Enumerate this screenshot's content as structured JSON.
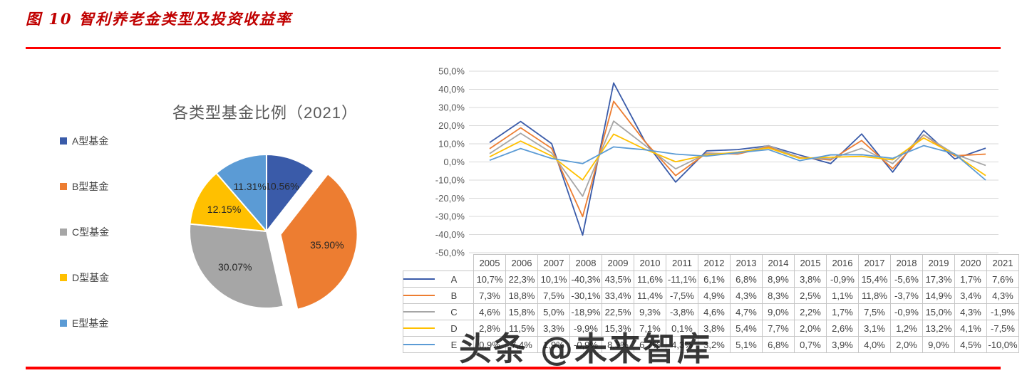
{
  "page": {
    "title": "图 10 智利养老金类型及投资收益率",
    "watermark": "头条 @未来智库",
    "title_color": "#c00000",
    "rule_color": "#fe0000"
  },
  "chart_data": [
    {
      "type": "pie",
      "title": "各类型基金比例（2021）",
      "labels": [
        "A型基金",
        "B型基金",
        "C型基金",
        "D型基金",
        "E型基金"
      ],
      "values": [
        10.56,
        35.9,
        30.07,
        12.15,
        11.31
      ],
      "value_labels": [
        "10.56%",
        "35.90%",
        "30.07%",
        "12.15%",
        "11.31%"
      ],
      "colors": [
        "#3a5ba9",
        "#ed7d31",
        "#a6a6a6",
        "#ffc000",
        "#5b9bd5"
      ],
      "exploded_index": 1,
      "start_angle_deg": 0,
      "direction": "clockwise",
      "legend_position": "left"
    },
    {
      "type": "line",
      "categories": [
        "2005",
        "2006",
        "2007",
        "2008",
        "2009",
        "2010",
        "2011",
        "2012",
        "2013",
        "2014",
        "2015",
        "2016",
        "2017",
        "2018",
        "2019",
        "2020",
        "2021"
      ],
      "series": [
        {
          "name": "A",
          "color": "#3a5ba9",
          "values": [
            10.7,
            22.3,
            10.1,
            -40.3,
            43.5,
            11.6,
            -11.1,
            6.1,
            6.8,
            8.9,
            3.8,
            -0.9,
            15.4,
            -5.6,
            17.3,
            1.7,
            7.6
          ]
        },
        {
          "name": "B",
          "color": "#ed7d31",
          "values": [
            7.3,
            18.8,
            7.5,
            -30.1,
            33.4,
            11.4,
            -7.5,
            4.9,
            4.3,
            8.3,
            2.5,
            1.1,
            11.8,
            -3.7,
            14.9,
            3.4,
            4.3
          ]
        },
        {
          "name": "C",
          "color": "#a6a6a6",
          "values": [
            4.6,
            15.8,
            5.0,
            -18.9,
            22.5,
            9.3,
            -3.8,
            4.6,
            4.7,
            9.0,
            2.2,
            1.7,
            7.5,
            -0.9,
            15.0,
            4.3,
            -1.9
          ]
        },
        {
          "name": "D",
          "color": "#ffc000",
          "values": [
            2.8,
            11.5,
            3.3,
            -9.9,
            15.3,
            7.1,
            0.1,
            3.8,
            5.4,
            7.7,
            2.0,
            2.6,
            3.1,
            1.2,
            13.2,
            4.1,
            -7.5
          ]
        },
        {
          "name": "E",
          "color": "#5b9bd5",
          "values": [
            0.9,
            7.4,
            1.9,
            -0.9,
            8.3,
            6.7,
            4.3,
            3.2,
            5.1,
            6.8,
            0.7,
            3.9,
            4.0,
            2.0,
            9.0,
            4.5,
            -10.0
          ]
        }
      ],
      "ylim": [
        -50,
        50
      ],
      "ytick_step": 10,
      "ytick_labels": [
        "50,0%",
        "40,0%",
        "30,0%",
        "20,0%",
        "10,0%",
        "0,0%",
        "-10,0%",
        "-20,0%",
        "-30,0%",
        "-40,0%",
        "-50,0%"
      ],
      "number_format": "comma-decimal percent, e.g. 10,7%",
      "grid": true,
      "legend": "table row headers A-E with colored line keys",
      "table_below_axis": true
    }
  ]
}
